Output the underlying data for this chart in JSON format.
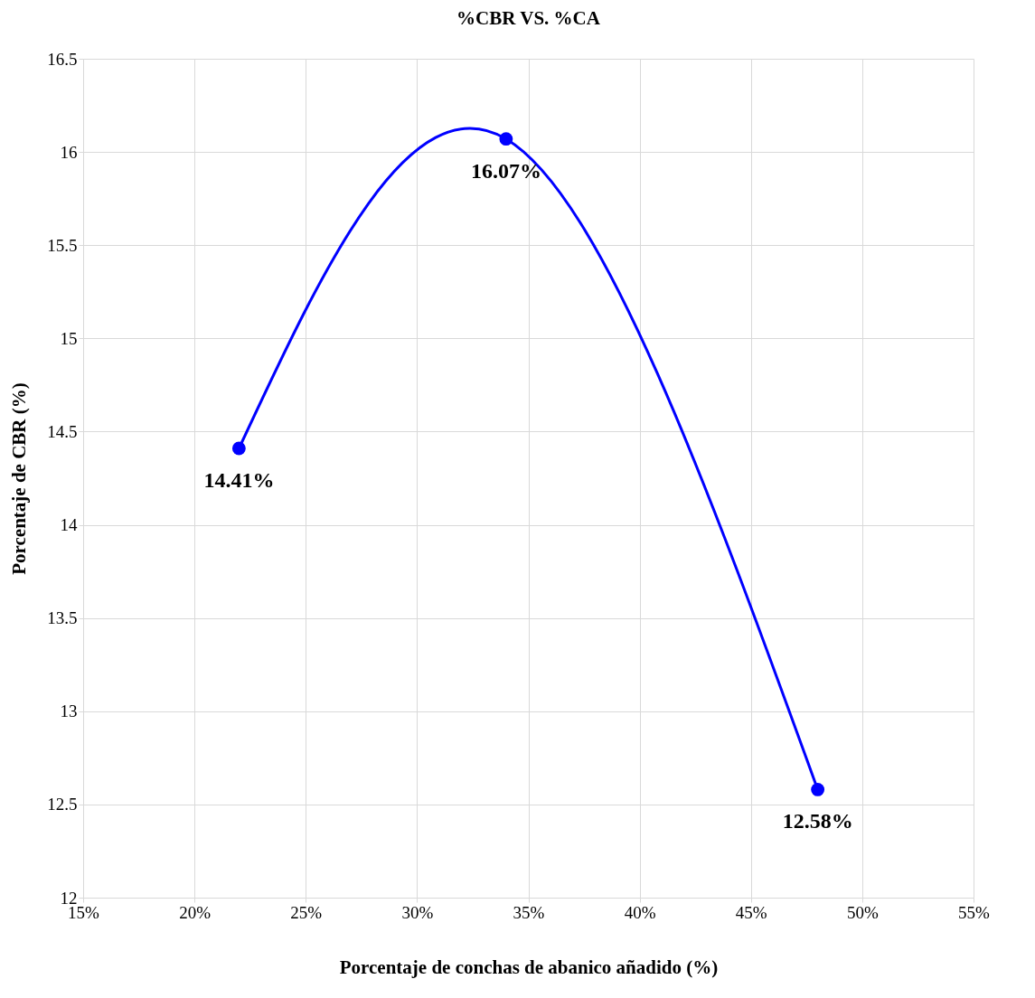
{
  "chart_data": {
    "type": "line",
    "title": "%CBR VS. %CA",
    "xlabel": "Porcentaje de conchas de abanico añadido (%)",
    "ylabel": "Porcentaje de CBR (%)",
    "x": [
      22,
      34,
      48
    ],
    "series": [
      {
        "color": "#0000ff",
        "values": [
          14.41,
          16.07,
          12.58
        ],
        "value_labels": [
          "14.41%",
          "16.07%",
          "12.58%"
        ]
      }
    ],
    "xlim": [
      15,
      55
    ],
    "xticks": [
      {
        "value": 15,
        "label": "15%"
      },
      {
        "value": 20,
        "label": "20%"
      },
      {
        "value": 25,
        "label": "25%"
      },
      {
        "value": 30,
        "label": "30%"
      },
      {
        "value": 35,
        "label": "35%"
      },
      {
        "value": 40,
        "label": "40%"
      },
      {
        "value": 45,
        "label": "45%"
      },
      {
        "value": 50,
        "label": "50%"
      },
      {
        "value": 55,
        "label": "55%"
      }
    ],
    "ylim": [
      12,
      16.5
    ],
    "yticks": [
      12,
      12.5,
      13,
      13.5,
      14,
      14.5,
      15,
      15.5,
      16,
      16.5
    ],
    "grid": true,
    "marker": "circle",
    "line_style": "solid"
  }
}
